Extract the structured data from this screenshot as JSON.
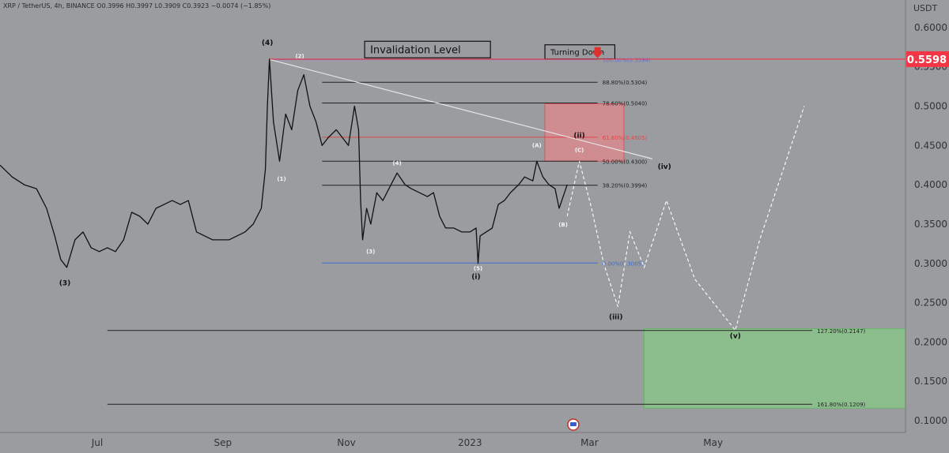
{
  "ticker_line": {
    "symbol": "XRP / TetherUS, 4h, BINANCE",
    "ohlc": "O0.3996 H0.3997 L0.3909 C0.3923 −0.0074 (−1.85%)"
  },
  "chart_data": {
    "type": "line",
    "title": "",
    "price_axis_unit": "USDT",
    "ylim": [
      0.085,
      0.635
    ],
    "y_ticks": [
      "0.6000",
      "0.5500",
      "0.5000",
      "0.4500",
      "0.4000",
      "0.3500",
      "0.3000",
      "0.2500",
      "0.2000",
      "0.1500",
      "0.1000"
    ],
    "y_tick_values": [
      0.6,
      0.55,
      0.5,
      0.45,
      0.4,
      0.35,
      0.3,
      0.25,
      0.2,
      0.15,
      0.1
    ],
    "x_ticks": [
      "Jul",
      "Sep",
      "Nov",
      "2023",
      "Mar",
      "May"
    ],
    "x_tick_dates": [
      "2022-07-01",
      "2022-09-01",
      "2022-11-01",
      "2023-01-01",
      "2023-03-01",
      "2023-05-01"
    ],
    "xlim": [
      "2022-05-14",
      "2023-08-04"
    ],
    "current_price": {
      "label": "0.5598",
      "value": 0.5598,
      "color": "#f23645"
    },
    "series": [
      {
        "style": "price",
        "color": "#111111",
        "points": [
          [
            "2022-05-14",
            0.425
          ],
          [
            "2022-05-20",
            0.41
          ],
          [
            "2022-05-26",
            0.4
          ],
          [
            "2022-06-01",
            0.395
          ],
          [
            "2022-06-06",
            0.37
          ],
          [
            "2022-06-10",
            0.335
          ],
          [
            "2022-06-13",
            0.305
          ],
          [
            "2022-06-16",
            0.295
          ],
          [
            "2022-06-20",
            0.33
          ],
          [
            "2022-06-24",
            0.34
          ],
          [
            "2022-06-28",
            0.32
          ],
          [
            "2022-07-02",
            0.315
          ],
          [
            "2022-07-06",
            0.32
          ],
          [
            "2022-07-10",
            0.315
          ],
          [
            "2022-07-14",
            0.33
          ],
          [
            "2022-07-18",
            0.365
          ],
          [
            "2022-07-22",
            0.36
          ],
          [
            "2022-07-26",
            0.35
          ],
          [
            "2022-07-30",
            0.37
          ],
          [
            "2022-08-03",
            0.375
          ],
          [
            "2022-08-07",
            0.38
          ],
          [
            "2022-08-11",
            0.375
          ],
          [
            "2022-08-15",
            0.38
          ],
          [
            "2022-08-19",
            0.34
          ],
          [
            "2022-08-23",
            0.335
          ],
          [
            "2022-08-27",
            0.33
          ],
          [
            "2022-08-31",
            0.33
          ],
          [
            "2022-09-04",
            0.33
          ],
          [
            "2022-09-08",
            0.335
          ],
          [
            "2022-09-12",
            0.34
          ],
          [
            "2022-09-16",
            0.35
          ],
          [
            "2022-09-20",
            0.37
          ],
          [
            "2022-09-22",
            0.42
          ],
          [
            "2022-09-23",
            0.5
          ],
          [
            "2022-09-24",
            0.56
          ],
          [
            "2022-09-26",
            0.48
          ],
          [
            "2022-09-29",
            0.43
          ],
          [
            "2022-10-02",
            0.49
          ],
          [
            "2022-10-05",
            0.47
          ],
          [
            "2022-10-08",
            0.52
          ],
          [
            "2022-10-11",
            0.54
          ],
          [
            "2022-10-14",
            0.5
          ],
          [
            "2022-10-17",
            0.48
          ],
          [
            "2022-10-20",
            0.45
          ],
          [
            "2022-10-23",
            0.46
          ],
          [
            "2022-10-27",
            0.47
          ],
          [
            "2022-10-30",
            0.46
          ],
          [
            "2022-11-02",
            0.45
          ],
          [
            "2022-11-05",
            0.5
          ],
          [
            "2022-11-07",
            0.47
          ],
          [
            "2022-11-08",
            0.38
          ],
          [
            "2022-11-09",
            0.33
          ],
          [
            "2022-11-11",
            0.37
          ],
          [
            "2022-11-13",
            0.35
          ],
          [
            "2022-11-16",
            0.39
          ],
          [
            "2022-11-19",
            0.38
          ],
          [
            "2022-11-23",
            0.4
          ],
          [
            "2022-11-26",
            0.415
          ],
          [
            "2022-11-30",
            0.4
          ],
          [
            "2022-12-03",
            0.395
          ],
          [
            "2022-12-07",
            0.39
          ],
          [
            "2022-12-11",
            0.385
          ],
          [
            "2022-12-14",
            0.39
          ],
          [
            "2022-12-17",
            0.36
          ],
          [
            "2022-12-20",
            0.345
          ],
          [
            "2022-12-24",
            0.345
          ],
          [
            "2022-12-28",
            0.34
          ],
          [
            "2023-01-01",
            0.34
          ],
          [
            "2023-01-04",
            0.345
          ],
          [
            "2023-01-05",
            0.3
          ],
          [
            "2023-01-06",
            0.335
          ],
          [
            "2023-01-09",
            0.34
          ],
          [
            "2023-01-12",
            0.345
          ],
          [
            "2023-01-15",
            0.375
          ],
          [
            "2023-01-18",
            0.38
          ],
          [
            "2023-01-21",
            0.39
          ],
          [
            "2023-01-25",
            0.4
          ],
          [
            "2023-01-28",
            0.41
          ],
          [
            "2023-02-01",
            0.405
          ],
          [
            "2023-02-03",
            0.43
          ],
          [
            "2023-02-06",
            0.41
          ],
          [
            "2023-02-09",
            0.4
          ],
          [
            "2023-02-12",
            0.395
          ],
          [
            "2023-02-14",
            0.37
          ],
          [
            "2023-02-16",
            0.385
          ],
          [
            "2023-02-18",
            0.4
          ]
        ]
      },
      {
        "style": "projection",
        "color": "#ffffff",
        "points": [
          [
            "2023-02-18",
            0.36
          ],
          [
            "2023-02-24",
            0.43
          ],
          [
            "2023-03-02",
            0.37
          ],
          [
            "2023-03-08",
            0.3
          ],
          [
            "2023-03-15",
            0.245
          ],
          [
            "2023-03-21",
            0.34
          ],
          [
            "2023-03-28",
            0.295
          ],
          [
            "2023-04-08",
            0.38
          ],
          [
            "2023-04-22",
            0.28
          ],
          [
            "2023-05-12",
            0.215
          ],
          [
            "2023-05-24",
            0.33
          ],
          [
            "2023-06-06",
            0.43
          ],
          [
            "2023-06-15",
            0.5
          ]
        ]
      }
    ],
    "levels": [
      {
        "label": "100.00%(0.5594)",
        "value": 0.5594,
        "start": "2022-09-24",
        "end": "2023-03-05",
        "color": "#6070d8"
      },
      {
        "label": "88.80%(0.5304)",
        "value": 0.5304,
        "start": "2022-10-20",
        "end": "2023-03-05",
        "color": "#222222"
      },
      {
        "label": "78.60%(0.5040)",
        "value": 0.504,
        "start": "2022-10-20",
        "end": "2023-03-05",
        "color": "#222222"
      },
      {
        "label": "61.80%(0.4605)",
        "value": 0.4605,
        "start": "2022-10-20",
        "end": "2023-03-05",
        "color": "#e04a4a"
      },
      {
        "label": "50.00%(0.4300)",
        "value": 0.43,
        "start": "2022-10-20",
        "end": "2023-03-05",
        "color": "#222222"
      },
      {
        "label": "38.20%(0.3994)",
        "value": 0.3994,
        "start": "2022-10-20",
        "end": "2023-03-05",
        "color": "#222222"
      },
      {
        "label": "0.00%(0.3005)",
        "value": 0.3005,
        "start": "2022-10-20",
        "end": "2023-03-05",
        "color": "#3a6cd8"
      },
      {
        "label": "127.20%(0.2147)",
        "value": 0.2147,
        "start": "2022-07-06",
        "end": "2023-06-19",
        "color": "#222222"
      },
      {
        "label": "161.80%(0.1209)",
        "value": 0.1209,
        "start": "2022-07-06",
        "end": "2023-06-19",
        "color": "#222222"
      }
    ],
    "resistance_line": {
      "values": [
        0.5594,
        0.433
      ],
      "dates": [
        "2022-09-24",
        "2023-04-01"
      ]
    },
    "current_price_line_start": "2022-09-24",
    "zones": [
      {
        "kind": "resistance",
        "from": "2023-02-07",
        "to": "2023-03-18",
        "low": 0.43,
        "high": 0.503,
        "fill": "#d88a8e",
        "stroke": "#d05a5f"
      },
      {
        "kind": "target",
        "from": "2023-03-28",
        "to": "2023-08-04",
        "low": 0.116,
        "high": 0.217,
        "fill": "#8ac48a",
        "stroke": "#6cb36c"
      }
    ],
    "wave_labels": [
      {
        "text": "(4)",
        "x": "2022-09-23",
        "y": 0.578,
        "light": false
      },
      {
        "text": "(3)",
        "x": "2022-06-15",
        "y": 0.272,
        "light": false
      },
      {
        "text": "(2)",
        "x": "2022-10-09",
        "y": 0.561,
        "light": true
      },
      {
        "text": "(1)",
        "x": "2022-09-30",
        "y": 0.405,
        "light": true
      },
      {
        "text": "(3)",
        "x": "2022-11-13",
        "y": 0.313,
        "light": true
      },
      {
        "text": "(4)",
        "x": "2022-11-26",
        "y": 0.425,
        "light": true
      },
      {
        "text": "(5)",
        "x": "2023-01-05",
        "y": 0.291,
        "light": true
      },
      {
        "text": "(i)",
        "x": "2023-01-04",
        "y": 0.28,
        "light": false
      },
      {
        "text": "(A)",
        "x": "2023-02-03",
        "y": 0.448,
        "light": true
      },
      {
        "text": "(B)",
        "x": "2023-02-16",
        "y": 0.347,
        "light": true
      },
      {
        "text": "(C)",
        "x": "2023-02-24",
        "y": 0.442,
        "light": true
      },
      {
        "text": "(ii)",
        "x": "2023-02-24",
        "y": 0.46,
        "light": false
      },
      {
        "text": "(iii)",
        "x": "2023-03-14",
        "y": 0.229,
        "light": false
      },
      {
        "text": "(iv)",
        "x": "2023-04-07",
        "y": 0.42,
        "light": false
      },
      {
        "text": "(v)",
        "x": "2023-05-12",
        "y": 0.205,
        "light": false
      }
    ],
    "annotations": [
      {
        "text": "Invalidation Level",
        "x": "2022-11-10",
        "y": 0.572,
        "size": 13
      },
      {
        "text": "Turning Down",
        "x": "2023-02-07",
        "y": 0.569,
        "size": 10
      }
    ],
    "markers": [
      {
        "kind": "down-arrow",
        "x": "2023-03-05",
        "y": 0.568,
        "color": "#e03030"
      },
      {
        "kind": "flag-event",
        "x": "2023-02-21",
        "y": 0.095
      }
    ]
  }
}
